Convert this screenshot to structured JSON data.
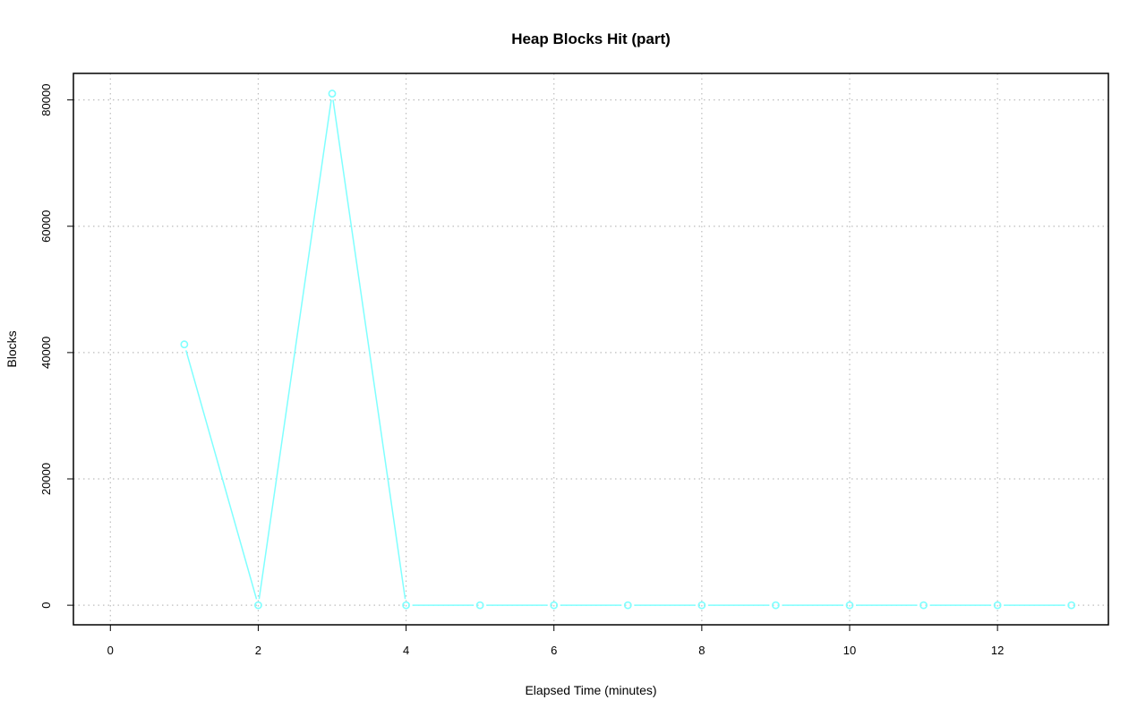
{
  "chart_data": {
    "type": "line",
    "title": "Heap Blocks Hit (part)",
    "xlabel": "Elapsed Time (minutes)",
    "ylabel": "Blocks",
    "xlim": [
      -0.5,
      13.5
    ],
    "ylim": [
      -3100,
      84200
    ],
    "xticks": [
      0,
      2,
      4,
      6,
      8,
      10,
      12
    ],
    "yticks": [
      0,
      20000,
      40000,
      60000,
      80000
    ],
    "grid": true,
    "series": [
      {
        "color": "#7fffff",
        "marker": "open-circle",
        "x": [
          1,
          2,
          3,
          4,
          5,
          6,
          7,
          8,
          9,
          10,
          11,
          12,
          13
        ],
        "y": [
          41300,
          0,
          81000,
          0,
          0,
          0,
          0,
          0,
          0,
          0,
          0,
          0,
          0
        ]
      }
    ]
  }
}
